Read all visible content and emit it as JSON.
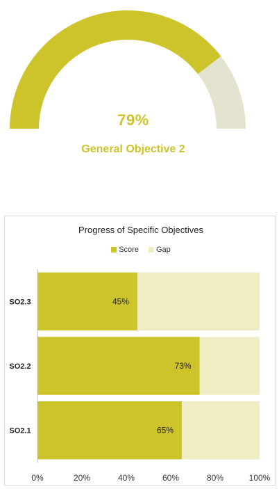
{
  "gauge": {
    "value": 0.79,
    "value_text": "79%",
    "label": "General Objective 2",
    "colors": {
      "fill": "#cdc42b",
      "remainder": "#e3e3cf"
    }
  },
  "chart": {
    "title": "Progress of Specific Objectives",
    "legend": {
      "score": "Score",
      "gap": "Gap"
    },
    "colors": {
      "score": "#cdc42b",
      "gap": "#efedc3"
    }
  },
  "chart_data": {
    "type": "bar",
    "orientation": "horizontal",
    "stacked": true,
    "title": "Progress of Specific Objectives",
    "categories": [
      "SO2.3",
      "SO2.2",
      "SO2.1"
    ],
    "series": [
      {
        "name": "Score",
        "values": [
          45,
          73,
          65
        ]
      },
      {
        "name": "Gap",
        "values": [
          55,
          27,
          35
        ]
      }
    ],
    "data_labels": [
      "45%",
      "73%",
      "65%"
    ],
    "xlim": [
      0,
      100
    ],
    "x_ticks": [
      "0%",
      "20%",
      "40%",
      "60%",
      "80%",
      "100%"
    ],
    "legend_position": "top",
    "grid": false
  }
}
